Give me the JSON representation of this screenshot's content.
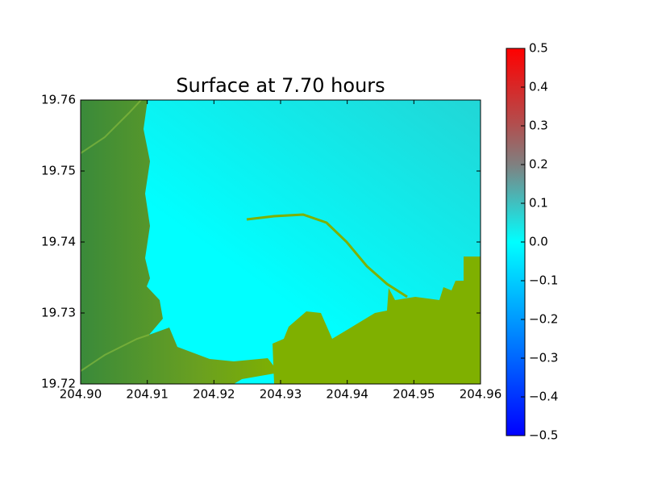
{
  "chart_data": {
    "type": "map",
    "title": "Surface at 7.70 hours",
    "xlim": [
      204.9,
      204.96
    ],
    "xticks": [
      {
        "value": 204.9,
        "label": "204.90"
      },
      204.91,
      204.92,
      204.93,
      204.94,
      204.95,
      204.96
    ],
    "ylim": [
      19.72,
      19.76
    ],
    "yticks": [
      19.72,
      19.73,
      19.74,
      19.75,
      19.76
    ],
    "clim": [
      -0.5,
      0.5
    ],
    "cticks": [
      {
        "value": -0.5,
        "label": "−0.5"
      },
      {
        "value": -0.4,
        "label": "−0.4"
      },
      {
        "value": -0.3,
        "label": "−0.3"
      },
      {
        "value": -0.2,
        "label": "−0.2"
      },
      {
        "value": -0.1,
        "label": "−0.1"
      },
      {
        "value": 0,
        "label": "0.0"
      },
      0.1,
      0.2,
      0.3,
      0.4,
      0.5
    ]
  }
}
